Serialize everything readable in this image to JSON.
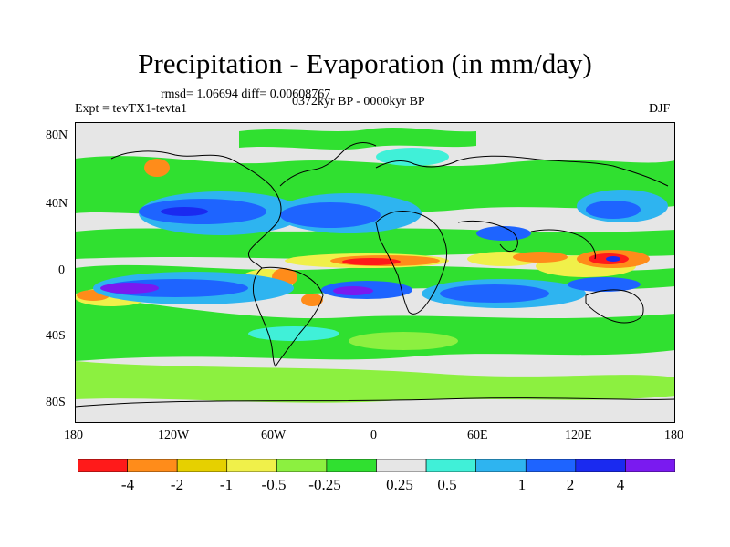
{
  "title": "Precipitation - Evaporation (in mm/day)",
  "stats": "rmsd= 1.06694 diff= 0.00608767",
  "experiment": "Expt = tevTX1-tevta1",
  "period": "0372kyr BP - 0000kyr BP",
  "season": "DJF",
  "axes": {
    "lon_ticks": [
      "180",
      "120W",
      "60W",
      "0",
      "60E",
      "120E",
      "180"
    ],
    "lat_ticks": [
      "80N",
      "40N",
      "0",
      "40S",
      "80S"
    ]
  },
  "colorbar": {
    "colors": [
      "#ff1a1a",
      "#ff8c1a",
      "#e6d000",
      "#f0f04a",
      "#8cf040",
      "#30e030",
      "#e6e6e6",
      "#40f0d8",
      "#2eb4f0",
      "#1e64ff",
      "#1a2af0",
      "#7a1af0"
    ],
    "labels": [
      "-4",
      "-2",
      "-1",
      "-0.5",
      "-0.25",
      "0.25",
      "0.5",
      "1",
      "2",
      "4"
    ]
  },
  "colors": {
    "ocean_neutral": "#e6e6e6",
    "coastline": "#000000"
  }
}
